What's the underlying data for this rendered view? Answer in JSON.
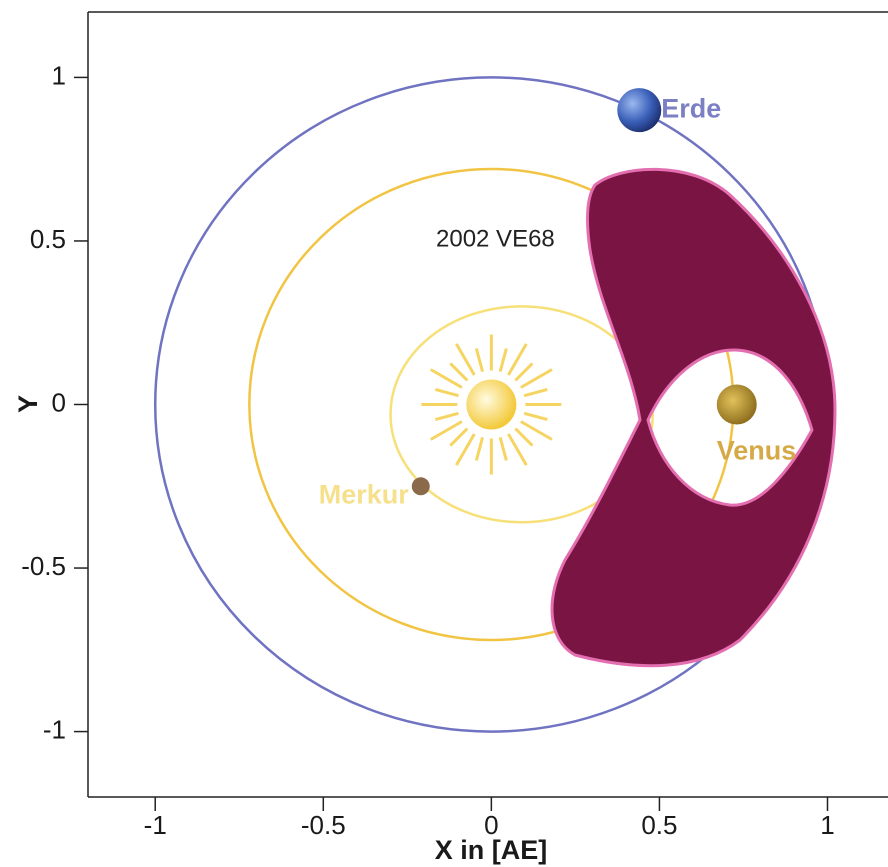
{
  "chart_data": {
    "type": "scatter",
    "x_label": "X in [AE]",
    "y_label": "Y",
    "xlim": [
      -1.2,
      1.18
    ],
    "ylim": [
      -1.2,
      1.2
    ],
    "xticks": [
      -1,
      -0.5,
      0,
      0.5,
      1
    ],
    "yticks": [
      -1,
      -0.5,
      0,
      0.5,
      1
    ],
    "orbits": [
      {
        "color": "#6f73c2",
        "cx": 0,
        "cy": 0,
        "rx": 1,
        "ry": 1
      },
      {
        "color": "#f2c443",
        "cx": 0,
        "cy": 0,
        "rx": 0.72,
        "ry": 0.72
      },
      {
        "color": "#f7e07a",
        "cx": 0.09,
        "cy": -0.03,
        "rx": 0.39,
        "ry": 0.33
      }
    ],
    "bodies": [
      {
        "label": "Erde",
        "color": "#7b7fc4",
        "x": 0.44,
        "y": 0.9
      },
      {
        "label": "Venus",
        "color": "#d6a947",
        "x": 0.73,
        "y": 0
      },
      {
        "label": "Merkur",
        "color": "#f6e08c",
        "x": -0.21,
        "y": -0.25
      },
      {
        "x": 0,
        "y": 0
      }
    ],
    "annotation": "2002 VE68"
  }
}
